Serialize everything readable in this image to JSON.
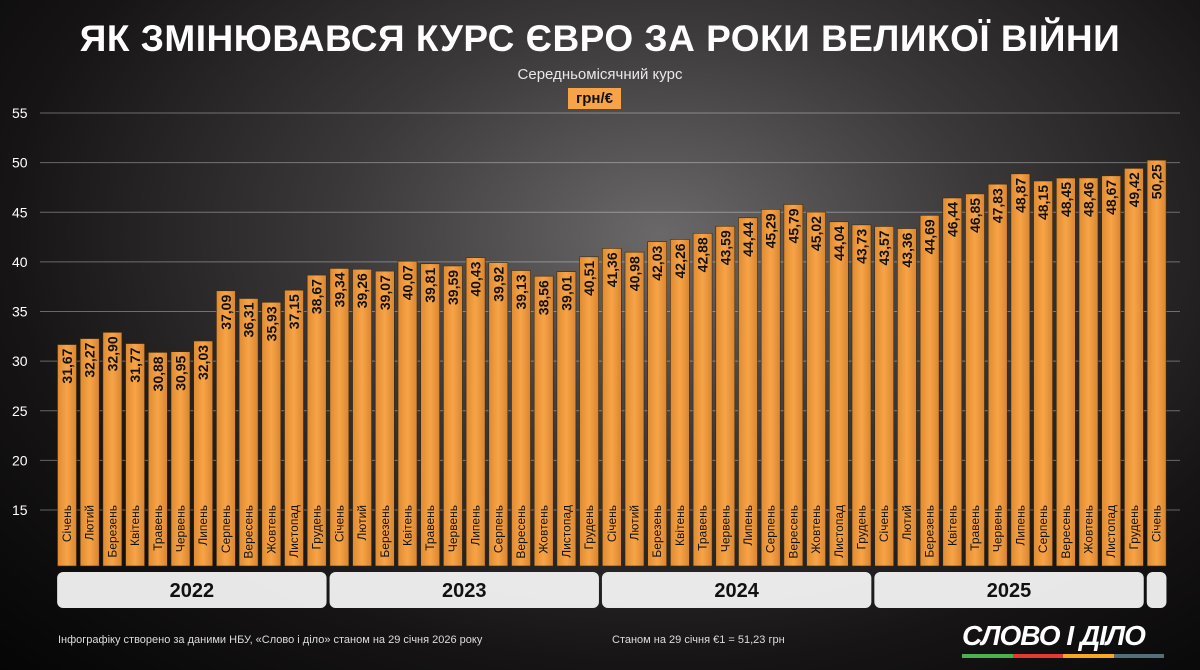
{
  "chart_data": {
    "type": "bar",
    "title": "ЯК ЗМІНЮВАВСЯ КУРС ЄВРО ЗА РОКИ ВЕЛИКОЇ ВІЙНИ",
    "subtitle": "Середньомісячний курс",
    "ylabel": "грн/€",
    "ylim": [
      15,
      55
    ],
    "yticks": [
      15,
      20,
      25,
      30,
      35,
      40,
      45,
      50,
      55
    ],
    "grid": true,
    "bar_color": "#f7a448",
    "categories": [
      "Січень",
      "Лютий",
      "Березень",
      "Квітень",
      "Травень",
      "Червень",
      "Липень",
      "Серпень",
      "Вересень",
      "Жовтень",
      "Листопад",
      "Грудень",
      "Січень",
      "Лютий",
      "Березень",
      "Квітень",
      "Травень",
      "Червень",
      "Липень",
      "Серпень",
      "Вересень",
      "Жовтень",
      "Листопад",
      "Грудень",
      "Січень",
      "Лютий",
      "Березень",
      "Квітень",
      "Травень",
      "Червень",
      "Липень",
      "Серпень",
      "Вересень",
      "Жовтень",
      "Листопад",
      "Грудень",
      "Січень",
      "Лютий",
      "Березень",
      "Квітень",
      "Травень",
      "Червень",
      "Липень",
      "Серпень",
      "Вересень",
      "Жовтень",
      "Листопад",
      "Грудень",
      "Січень"
    ],
    "values": [
      31.67,
      32.27,
      32.9,
      31.77,
      30.88,
      30.95,
      32.03,
      37.09,
      36.31,
      35.93,
      37.15,
      38.67,
      39.34,
      39.26,
      39.07,
      40.07,
      39.81,
      39.59,
      40.43,
      39.92,
      39.13,
      38.56,
      39.01,
      40.51,
      41.36,
      40.98,
      42.03,
      42.26,
      42.88,
      43.59,
      44.44,
      45.29,
      45.79,
      45.02,
      44.04,
      43.73,
      43.57,
      43.36,
      44.69,
      46.44,
      46.85,
      47.83,
      48.87,
      48.15,
      48.45,
      48.46,
      48.67,
      49.42,
      50.25
    ],
    "value_labels": [
      "31,67",
      "32,27",
      "32,90",
      "31,77",
      "30,88",
      "30,95",
      "32,03",
      "37,09",
      "36,31",
      "35,93",
      "37,15",
      "38,67",
      "39,34",
      "39,26",
      "39,07",
      "40,07",
      "39,81",
      "39,59",
      "40,43",
      "39,92",
      "39,13",
      "38,56",
      "39,01",
      "40,51",
      "41,36",
      "40,98",
      "42,03",
      "42,26",
      "42,88",
      "43,59",
      "44,44",
      "45,29",
      "45,79",
      "45,02",
      "44,04",
      "43,73",
      "43,57",
      "43,36",
      "44,69",
      "46,44",
      "46,85",
      "47,83",
      "48,87",
      "48,15",
      "48,45",
      "48,46",
      "48,67",
      "49,42",
      "50,25"
    ],
    "year_groups": [
      {
        "label": "2022",
        "count": 12
      },
      {
        "label": "2023",
        "count": 12
      },
      {
        "label": "2024",
        "count": 12
      },
      {
        "label": "2025",
        "count": 12
      },
      {
        "label": "",
        "count": 1
      }
    ]
  },
  "footer": {
    "source": "Інфографіку створено за даними НБУ, «Слово і діло» станом на 29 січня 2026 року",
    "current_rate": "Станом на 29 січня €1 = 51,23 грн"
  },
  "logo": {
    "text": "СЛОВО І ДІЛО",
    "colors": [
      "#4caf50",
      "#e53935",
      "#f9a825",
      "#546e7a"
    ]
  }
}
